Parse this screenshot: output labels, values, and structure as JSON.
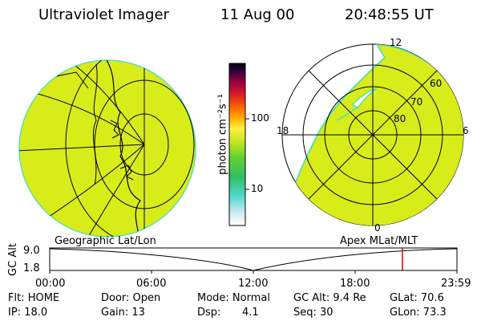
{
  "header": {
    "title": "Ultraviolet Imager",
    "date": "11 Aug 00",
    "time": "20:48:55 UT"
  },
  "colorbar": {
    "label": "photon cm⁻²s⁻¹",
    "ticks": [
      "100",
      "10"
    ]
  },
  "polar": {
    "mlt_labels": [
      "12",
      "18",
      "6",
      "0"
    ],
    "lat_labels": [
      "60",
      "70",
      "80"
    ]
  },
  "panels": {
    "left_label": "Geographic Lat/Lon",
    "right_label": "Apex MLat/MLT"
  },
  "altitude_plot": {
    "ylabel": "GC Alt",
    "ymax_label": "9.0",
    "ymin_label": "1.8",
    "x_ticks": [
      "00:00",
      "06:00",
      "12:00",
      "18:00",
      "23:59"
    ],
    "marker_color": "#e00000"
  },
  "status": {
    "flt": "Flt: HOME",
    "ip": "IP: 18.0",
    "door": "Door: Open",
    "gain": "Gain: 13",
    "mode": "Mode: Normal",
    "dsp_label": "Dsp:",
    "dsp_value": "4.1",
    "gc_alt": "GC Alt: 9.4 Re",
    "seq": "Seq: 30",
    "glat": "GLat: 70.6",
    "glon": "GLon: 73.3"
  },
  "colors": {
    "image_fill": "#d8ec1a",
    "rim": "#5ce0b0"
  }
}
